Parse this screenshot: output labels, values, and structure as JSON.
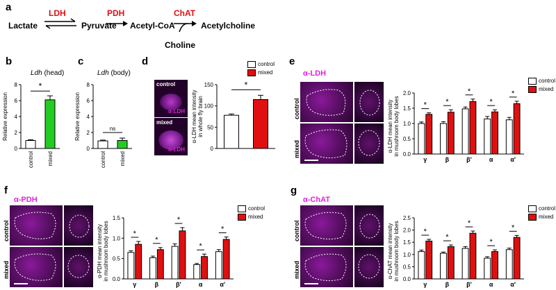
{
  "colors": {
    "magenta": "#e020e0",
    "red": "#e01010",
    "green": "#22cc22",
    "control": "#ffffff",
    "mixed": "#e01010"
  },
  "panel_letters": {
    "a": "a",
    "b": "b",
    "c": "c",
    "d": "d",
    "e": "e",
    "f": "f",
    "g": "g"
  },
  "pathway": {
    "lactate": "Lactate",
    "pyruvate": "Pyruvate",
    "acetylcoa": "Acetyl-CoA",
    "acetylcholine": "Acetylcholine",
    "choline": "Choline",
    "ldh": "LDH",
    "pdh": "PDH",
    "chat": "ChAT"
  },
  "common": {
    "control": "control",
    "mixed": "mixed",
    "star": "*",
    "ns": "ns",
    "alpha": "α",
    "beta": "β",
    "gamma": "γ",
    "betap": "β'"
  },
  "panel_b": {
    "title_italic": "Ldh",
    "title_rest": " (head)",
    "ylabel": "Relative expression"
  },
  "panel_c": {
    "title_italic": "Ldh",
    "title_rest": " (body)",
    "ylabel": "Relative expression"
  },
  "panel_d": {
    "ylabel1": "α-LDH mean intensity",
    "ylabel2": "in whole fly brain",
    "antibody": "α-LDH"
  },
  "panel_e": {
    "antibody": "α-LDH",
    "ylabel1": "α-LDH mean intensity",
    "ylabel2": "in mushroom body lobes"
  },
  "panel_f": {
    "antibody": "α-PDH",
    "ylabel1": "α-PDH mean intensity",
    "ylabel2": "in mushroom body lobes"
  },
  "panel_g": {
    "antibody": "α-ChAT",
    "ylabel1": "α-ChAT mean intensity",
    "ylabel2": "in mushroom body lobes"
  },
  "chart_data": [
    {
      "panel": "b",
      "type": "bar",
      "categories": [
        "control",
        "mixed"
      ],
      "values": [
        1.0,
        6.1
      ],
      "errors": [
        0.1,
        0.5
      ],
      "ylim": [
        0,
        8
      ],
      "yticks": [
        0,
        2,
        4,
        6,
        8
      ],
      "ylabel": "Relative expression",
      "significance": [
        "*"
      ]
    },
    {
      "panel": "c",
      "type": "bar",
      "categories": [
        "control",
        "mixed"
      ],
      "values": [
        0.95,
        1.0
      ],
      "errors": [
        0.1,
        0.3
      ],
      "ylim": [
        0,
        8
      ],
      "yticks": [
        0,
        2,
        4,
        6,
        8
      ],
      "ylabel": "Relative expression",
      "significance": [
        "ns"
      ]
    },
    {
      "panel": "d",
      "type": "bar",
      "categories": [
        "control",
        "mixed"
      ],
      "values": [
        78,
        115
      ],
      "errors": [
        3,
        10
      ],
      "ylim": [
        0,
        150
      ],
      "yticks": [
        0,
        50,
        100,
        150
      ],
      "ylabel": "α-LDH mean intensity in whole fly brain",
      "significance": [
        "*"
      ]
    },
    {
      "panel": "e",
      "type": "bar",
      "categories": [
        "γ",
        "β",
        "β'",
        "α",
        "α'"
      ],
      "series": [
        {
          "name": "control",
          "values": [
            1.0,
            1.0,
            1.48,
            1.15,
            1.12
          ],
          "errors": [
            0.05,
            0.06,
            0.06,
            0.08,
            0.08
          ]
        },
        {
          "name": "mixed",
          "values": [
            1.3,
            1.37,
            1.72,
            1.38,
            1.65
          ],
          "errors": [
            0.05,
            0.08,
            0.08,
            0.07,
            0.08
          ]
        }
      ],
      "ylim": [
        0,
        2.0
      ],
      "yticks": [
        0.0,
        0.5,
        1.0,
        1.5,
        2.0
      ],
      "ylabel": "α-LDH mean intensity in mushroom body lobes",
      "significance": [
        "*",
        "*",
        "*",
        "*",
        "*"
      ]
    },
    {
      "panel": "f",
      "type": "bar",
      "categories": [
        "γ",
        "β",
        "β'",
        "α",
        "α'"
      ],
      "series": [
        {
          "name": "control",
          "values": [
            0.65,
            0.52,
            0.8,
            0.35,
            0.67
          ],
          "errors": [
            0.04,
            0.04,
            0.06,
            0.03,
            0.05
          ]
        },
        {
          "name": "mixed",
          "values": [
            0.85,
            0.72,
            1.18,
            0.55,
            0.97
          ],
          "errors": [
            0.07,
            0.05,
            0.08,
            0.06,
            0.06
          ]
        }
      ],
      "ylim": [
        0,
        1.5
      ],
      "yticks": [
        0.0,
        0.5,
        1.0,
        1.5
      ],
      "ylabel": "α-PDH mean intensity in mushroom body lobes",
      "significance": [
        "*",
        "*",
        "*",
        "*",
        "*"
      ]
    },
    {
      "panel": "g",
      "type": "bar",
      "categories": [
        "γ",
        "β",
        "β'",
        "α",
        "α'"
      ],
      "series": [
        {
          "name": "control",
          "values": [
            1.12,
            1.05,
            1.25,
            0.85,
            1.2
          ],
          "errors": [
            0.06,
            0.05,
            0.07,
            0.06,
            0.06
          ]
        },
        {
          "name": "mixed",
          "values": [
            1.55,
            1.32,
            1.87,
            1.12,
            1.7
          ],
          "errors": [
            0.07,
            0.07,
            0.09,
            0.07,
            0.08
          ]
        }
      ],
      "ylim": [
        0,
        2.5
      ],
      "yticks": [
        0.0,
        0.5,
        1.0,
        1.5,
        2.0,
        2.5
      ],
      "ylabel": "α-ChAT mean intensity in mushroom body lobes",
      "significance": [
        "*",
        "*",
        "*",
        "*",
        "*"
      ]
    }
  ]
}
